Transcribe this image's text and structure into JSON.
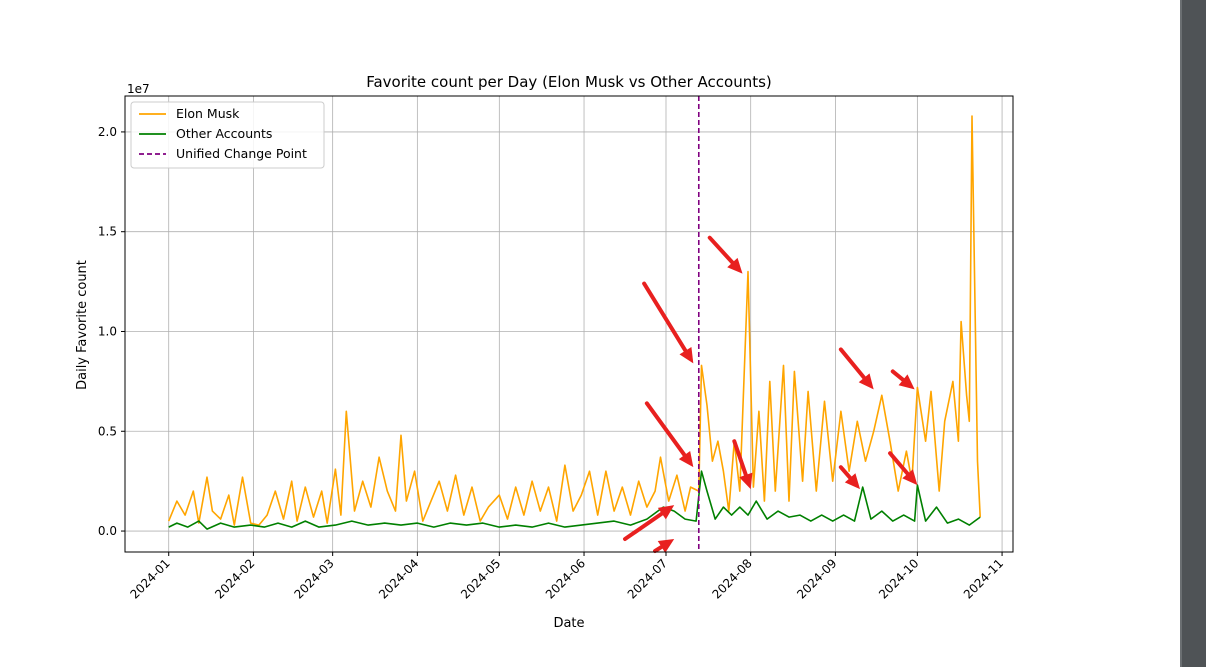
{
  "chart_data": {
    "type": "line",
    "title": "Favorite count per Day (Elon Musk vs Other Accounts)",
    "xlabel": "Date",
    "ylabel": "Daily Favorite count",
    "y_offset_label": "1e7",
    "y_ticks": [
      {
        "value": 0.0,
        "label": "0.0"
      },
      {
        "value": 0.5,
        "label": "0.5"
      },
      {
        "value": 1.0,
        "label": "1.0"
      },
      {
        "value": 1.5,
        "label": "1.5"
      },
      {
        "value": 2.0,
        "label": "2.0"
      }
    ],
    "ylim": [
      -0.105,
      2.18
    ],
    "y_units": "1e7 favorites",
    "x_ticks": [
      "2024-01",
      "2024-02",
      "2024-03",
      "2024-04",
      "2024-05",
      "2024-06",
      "2024-07",
      "2024-08",
      "2024-09",
      "2024-10",
      "2024-11"
    ],
    "xlim": [
      "2023-12-16",
      "2024-11-05"
    ],
    "grid": true,
    "legend_position": "upper left",
    "legend": [
      {
        "label": "Elon Musk",
        "color": "#ffa500",
        "style": "solid"
      },
      {
        "label": "Other Accounts",
        "color": "#008000",
        "style": "solid"
      },
      {
        "label": "Unified Change Point",
        "color": "#800080",
        "style": "dashed"
      }
    ],
    "change_point": {
      "date": "2024-07-13"
    },
    "series": [
      {
        "name": "Elon Musk",
        "color": "#ffa500",
        "points": [
          [
            "2024-01-01",
            0.05
          ],
          [
            "2024-01-04",
            0.15
          ],
          [
            "2024-01-07",
            0.08
          ],
          [
            "2024-01-10",
            0.2
          ],
          [
            "2024-01-12",
            0.04
          ],
          [
            "2024-01-15",
            0.27
          ],
          [
            "2024-01-17",
            0.1
          ],
          [
            "2024-01-20",
            0.06
          ],
          [
            "2024-01-23",
            0.18
          ],
          [
            "2024-01-25",
            0.03
          ],
          [
            "2024-01-28",
            0.27
          ],
          [
            "2024-01-31",
            0.04
          ],
          [
            "2024-02-03",
            0.03
          ],
          [
            "2024-02-06",
            0.08
          ],
          [
            "2024-02-09",
            0.2
          ],
          [
            "2024-02-12",
            0.06
          ],
          [
            "2024-02-15",
            0.25
          ],
          [
            "2024-02-17",
            0.05
          ],
          [
            "2024-02-20",
            0.22
          ],
          [
            "2024-02-23",
            0.07
          ],
          [
            "2024-02-26",
            0.2
          ],
          [
            "2024-02-28",
            0.04
          ],
          [
            "2024-03-02",
            0.31
          ],
          [
            "2024-03-04",
            0.08
          ],
          [
            "2024-03-06",
            0.6
          ],
          [
            "2024-03-09",
            0.1
          ],
          [
            "2024-03-12",
            0.25
          ],
          [
            "2024-03-15",
            0.12
          ],
          [
            "2024-03-18",
            0.37
          ],
          [
            "2024-03-21",
            0.2
          ],
          [
            "2024-03-24",
            0.1
          ],
          [
            "2024-03-26",
            0.48
          ],
          [
            "2024-03-28",
            0.15
          ],
          [
            "2024-03-31",
            0.3
          ],
          [
            "2024-04-03",
            0.05
          ],
          [
            "2024-04-06",
            0.15
          ],
          [
            "2024-04-09",
            0.25
          ],
          [
            "2024-04-12",
            0.1
          ],
          [
            "2024-04-15",
            0.28
          ],
          [
            "2024-04-18",
            0.08
          ],
          [
            "2024-04-21",
            0.22
          ],
          [
            "2024-04-24",
            0.05
          ],
          [
            "2024-04-27",
            0.12
          ],
          [
            "2024-05-01",
            0.18
          ],
          [
            "2024-05-04",
            0.06
          ],
          [
            "2024-05-07",
            0.22
          ],
          [
            "2024-05-10",
            0.08
          ],
          [
            "2024-05-13",
            0.25
          ],
          [
            "2024-05-16",
            0.1
          ],
          [
            "2024-05-19",
            0.22
          ],
          [
            "2024-05-22",
            0.05
          ],
          [
            "2024-05-25",
            0.33
          ],
          [
            "2024-05-28",
            0.1
          ],
          [
            "2024-05-31",
            0.18
          ],
          [
            "2024-06-03",
            0.3
          ],
          [
            "2024-06-06",
            0.08
          ],
          [
            "2024-06-09",
            0.3
          ],
          [
            "2024-06-12",
            0.1
          ],
          [
            "2024-06-15",
            0.22
          ],
          [
            "2024-06-18",
            0.08
          ],
          [
            "2024-06-21",
            0.25
          ],
          [
            "2024-06-24",
            0.12
          ],
          [
            "2024-06-27",
            0.2
          ],
          [
            "2024-06-29",
            0.37
          ],
          [
            "2024-07-02",
            0.15
          ],
          [
            "2024-07-05",
            0.28
          ],
          [
            "2024-07-08",
            0.1
          ],
          [
            "2024-07-10",
            0.22
          ],
          [
            "2024-07-13",
            0.2
          ],
          [
            "2024-07-14",
            0.83
          ],
          [
            "2024-07-16",
            0.63
          ],
          [
            "2024-07-18",
            0.35
          ],
          [
            "2024-07-20",
            0.45
          ],
          [
            "2024-07-22",
            0.3
          ],
          [
            "2024-07-24",
            0.1
          ],
          [
            "2024-07-26",
            0.45
          ],
          [
            "2024-07-28",
            0.2
          ],
          [
            "2024-07-31",
            1.3
          ],
          [
            "2024-08-02",
            0.22
          ],
          [
            "2024-08-04",
            0.6
          ],
          [
            "2024-08-06",
            0.15
          ],
          [
            "2024-08-08",
            0.75
          ],
          [
            "2024-08-10",
            0.2
          ],
          [
            "2024-08-13",
            0.83
          ],
          [
            "2024-08-15",
            0.15
          ],
          [
            "2024-08-17",
            0.8
          ],
          [
            "2024-08-20",
            0.25
          ],
          [
            "2024-08-22",
            0.7
          ],
          [
            "2024-08-25",
            0.2
          ],
          [
            "2024-08-28",
            0.65
          ],
          [
            "2024-08-31",
            0.25
          ],
          [
            "2024-09-03",
            0.6
          ],
          [
            "2024-09-06",
            0.3
          ],
          [
            "2024-09-09",
            0.55
          ],
          [
            "2024-09-12",
            0.35
          ],
          [
            "2024-09-15",
            0.5
          ],
          [
            "2024-09-18",
            0.68
          ],
          [
            "2024-09-21",
            0.45
          ],
          [
            "2024-09-24",
            0.2
          ],
          [
            "2024-09-27",
            0.4
          ],
          [
            "2024-09-29",
            0.25
          ],
          [
            "2024-10-01",
            0.72
          ],
          [
            "2024-10-04",
            0.45
          ],
          [
            "2024-10-06",
            0.7
          ],
          [
            "2024-10-09",
            0.2
          ],
          [
            "2024-10-11",
            0.55
          ],
          [
            "2024-10-14",
            0.75
          ],
          [
            "2024-10-16",
            0.45
          ],
          [
            "2024-10-17",
            1.05
          ],
          [
            "2024-10-19",
            0.68
          ],
          [
            "2024-10-20",
            0.55
          ],
          [
            "2024-10-21",
            2.08
          ],
          [
            "2024-10-23",
            0.35
          ],
          [
            "2024-10-24",
            0.07
          ]
        ]
      },
      {
        "name": "Other Accounts",
        "color": "#008000",
        "points": [
          [
            "2024-01-01",
            0.02
          ],
          [
            "2024-01-04",
            0.04
          ],
          [
            "2024-01-08",
            0.02
          ],
          [
            "2024-01-12",
            0.05
          ],
          [
            "2024-01-15",
            0.01
          ],
          [
            "2024-01-20",
            0.04
          ],
          [
            "2024-01-25",
            0.02
          ],
          [
            "2024-01-31",
            0.03
          ],
          [
            "2024-02-05",
            0.02
          ],
          [
            "2024-02-10",
            0.04
          ],
          [
            "2024-02-15",
            0.02
          ],
          [
            "2024-02-20",
            0.05
          ],
          [
            "2024-02-25",
            0.02
          ],
          [
            "2024-03-02",
            0.03
          ],
          [
            "2024-03-08",
            0.05
          ],
          [
            "2024-03-14",
            0.03
          ],
          [
            "2024-03-20",
            0.04
          ],
          [
            "2024-03-26",
            0.03
          ],
          [
            "2024-04-01",
            0.04
          ],
          [
            "2024-04-07",
            0.02
          ],
          [
            "2024-04-13",
            0.04
          ],
          [
            "2024-04-19",
            0.03
          ],
          [
            "2024-04-25",
            0.04
          ],
          [
            "2024-05-01",
            0.02
          ],
          [
            "2024-05-07",
            0.03
          ],
          [
            "2024-05-13",
            0.02
          ],
          [
            "2024-05-19",
            0.04
          ],
          [
            "2024-05-25",
            0.02
          ],
          [
            "2024-05-31",
            0.03
          ],
          [
            "2024-06-06",
            0.04
          ],
          [
            "2024-06-12",
            0.05
          ],
          [
            "2024-06-18",
            0.03
          ],
          [
            "2024-06-24",
            0.06
          ],
          [
            "2024-06-30",
            0.12
          ],
          [
            "2024-07-04",
            0.1
          ],
          [
            "2024-07-08",
            0.06
          ],
          [
            "2024-07-12",
            0.05
          ],
          [
            "2024-07-14",
            0.3
          ],
          [
            "2024-07-16",
            0.2
          ],
          [
            "2024-07-19",
            0.06
          ],
          [
            "2024-07-22",
            0.12
          ],
          [
            "2024-07-25",
            0.08
          ],
          [
            "2024-07-28",
            0.12
          ],
          [
            "2024-07-31",
            0.08
          ],
          [
            "2024-08-03",
            0.15
          ],
          [
            "2024-08-07",
            0.06
          ],
          [
            "2024-08-11",
            0.1
          ],
          [
            "2024-08-15",
            0.07
          ],
          [
            "2024-08-19",
            0.08
          ],
          [
            "2024-08-23",
            0.05
          ],
          [
            "2024-08-27",
            0.08
          ],
          [
            "2024-08-31",
            0.05
          ],
          [
            "2024-09-04",
            0.08
          ],
          [
            "2024-09-08",
            0.05
          ],
          [
            "2024-09-11",
            0.22
          ],
          [
            "2024-09-14",
            0.06
          ],
          [
            "2024-09-18",
            0.1
          ],
          [
            "2024-09-22",
            0.05
          ],
          [
            "2024-09-26",
            0.08
          ],
          [
            "2024-09-30",
            0.05
          ],
          [
            "2024-10-01",
            0.23
          ],
          [
            "2024-10-04",
            0.05
          ],
          [
            "2024-10-08",
            0.12
          ],
          [
            "2024-10-12",
            0.04
          ],
          [
            "2024-10-16",
            0.06
          ],
          [
            "2024-10-20",
            0.03
          ],
          [
            "2024-10-22",
            0.05
          ],
          [
            "2024-10-24",
            0.07
          ]
        ]
      }
    ]
  }
}
